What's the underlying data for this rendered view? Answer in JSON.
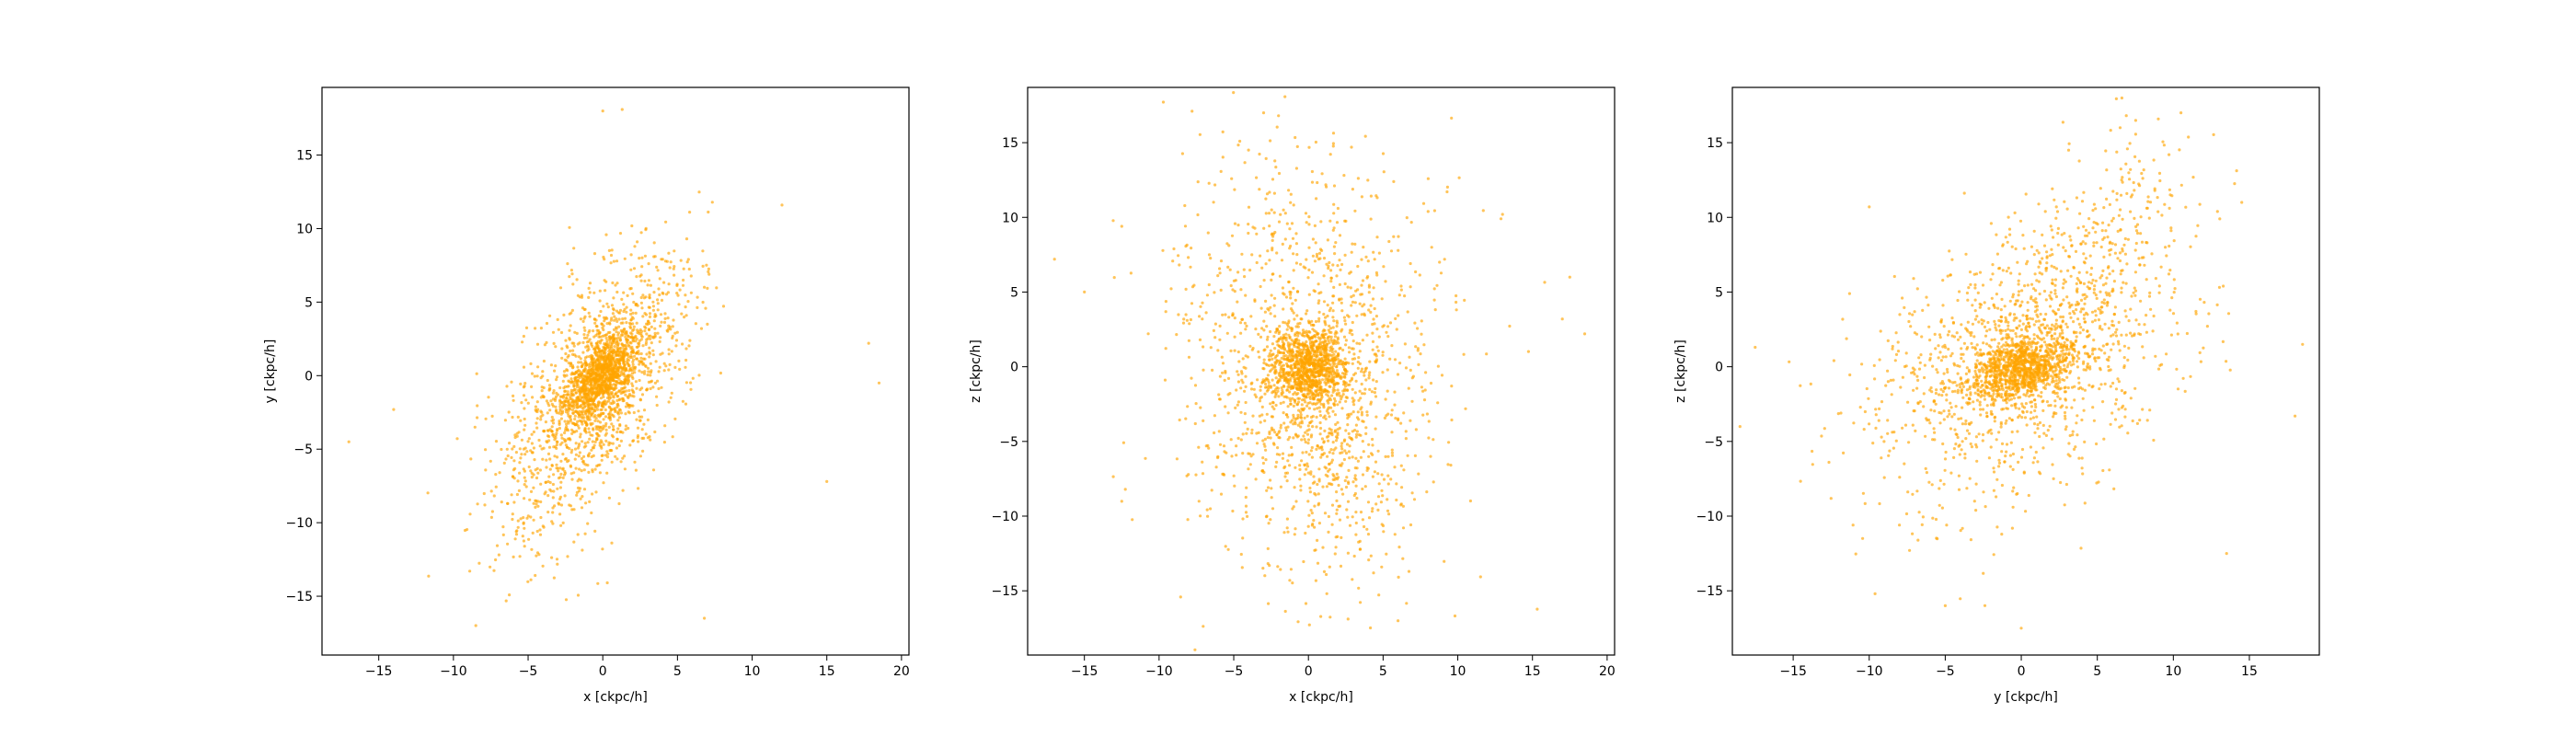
{
  "figure": {
    "background": "#ffffff",
    "point_color": "#ffa500"
  },
  "chart_data": [
    {
      "type": "scatter",
      "xlabel": "x [ckpc/h]",
      "ylabel": "y [ckpc/h]",
      "xlim": [
        -18.8,
        20.5
      ],
      "ylim": [
        -19.0,
        19.6
      ],
      "xticks": [
        -15,
        -10,
        -5,
        0,
        5,
        10,
        15,
        20
      ],
      "yticks": [
        -15,
        -10,
        -5,
        0,
        5,
        10,
        15
      ],
      "grid": false,
      "series": [
        {
          "color": "#ffa500",
          "points_shown": 2500,
          "core_center": [
            0.0,
            0.0
          ],
          "core_spread": [
            1.2,
            1.5
          ],
          "body_spread": [
            3.0,
            4.2
          ],
          "correlation": 0.55,
          "tail_direction": [
            -5.0,
            -12.0
          ],
          "outliers": [
            [
              -17.0,
              -4.5
            ],
            [
              -14.0,
              -2.3
            ],
            [
              17.8,
              2.2
            ],
            [
              18.5,
              -0.5
            ],
            [
              15.0,
              -7.2
            ],
            [
              0.0,
              18.0
            ],
            [
              1.3,
              18.1
            ],
            [
              12.0,
              11.6
            ],
            [
              6.8,
              -16.5
            ],
            [
              -8.5,
              -17.0
            ]
          ]
        }
      ]
    },
    {
      "type": "scatter",
      "xlabel": "x [ckpc/h]",
      "ylabel": "z [ckpc/h]",
      "xlim": [
        -18.8,
        20.5
      ],
      "ylim": [
        -19.3,
        18.7
      ],
      "xticks": [
        -15,
        -10,
        -5,
        0,
        5,
        10,
        15,
        20
      ],
      "yticks": [
        -15,
        -10,
        -5,
        0,
        5,
        10,
        15
      ],
      "grid": false,
      "series": [
        {
          "color": "#ffa500",
          "points_shown": 2500,
          "core_center": [
            0.0,
            0.0
          ],
          "core_spread": [
            1.3,
            1.3
          ],
          "body_spread": [
            4.5,
            7.0
          ],
          "correlation": -0.1,
          "tail_direction": [
            2.0,
            -10.0
          ],
          "outliers": [
            [
              -17.0,
              7.2
            ],
            [
              -15.0,
              5.0
            ],
            [
              18.5,
              2.2
            ],
            [
              17.5,
              6.0
            ],
            [
              17.0,
              3.2
            ],
            [
              -3.0,
              17.0
            ],
            [
              -2.0,
              16.8
            ],
            [
              6.0,
              -17.0
            ],
            [
              13.0,
              10.2
            ],
            [
              -12.5,
              9.4
            ]
          ]
        }
      ]
    },
    {
      "type": "scatter",
      "xlabel": "y [ckpc/h]",
      "ylabel": "z [ckpc/h]",
      "xlim": [
        -19.0,
        19.6
      ],
      "ylim": [
        -19.3,
        18.7
      ],
      "xticks": [
        -15,
        -10,
        -5,
        0,
        5,
        10,
        15
      ],
      "yticks": [
        -15,
        -10,
        -5,
        0,
        5,
        10,
        15
      ],
      "grid": false,
      "series": [
        {
          "color": "#ffa500",
          "points_shown": 2500,
          "core_center": [
            0.0,
            0.0
          ],
          "core_spread": [
            1.8,
            1.1
          ],
          "body_spread": [
            5.0,
            4.5
          ],
          "correlation": 0.35,
          "tail_direction": [
            9.0,
            14.0
          ],
          "outliers": [
            [
              -17.5,
              1.3
            ],
            [
              -18.5,
              -4.0
            ],
            [
              18.5,
              1.5
            ],
            [
              18.0,
              -3.3
            ],
            [
              14.5,
              11.0
            ],
            [
              10.5,
              17.0
            ],
            [
              -10.0,
              10.7
            ],
            [
              0.0,
              -17.5
            ],
            [
              -5.0,
              -16.0
            ],
            [
              13.5,
              -12.5
            ]
          ]
        }
      ]
    }
  ]
}
